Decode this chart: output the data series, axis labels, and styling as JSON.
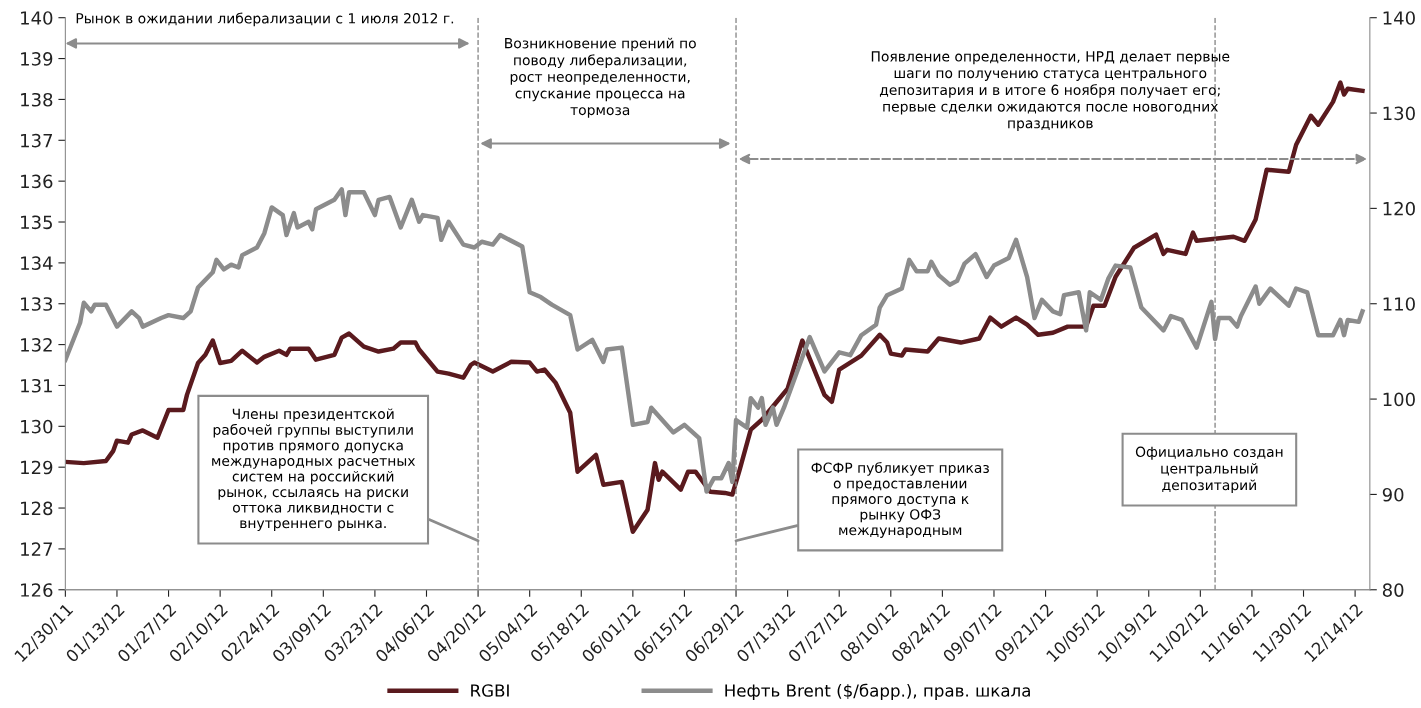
{
  "chart_data": {
    "type": "line",
    "xlim": [
      "2011-12-30",
      "2012-12-18"
    ],
    "xticks": [
      {
        "value": "2011-12-30",
        "label": "12/30/11"
      },
      {
        "value": "2012-01-13",
        "label": "01/13/12"
      },
      {
        "value": "2012-01-27",
        "label": "01/27/12"
      },
      {
        "value": "2012-02-10",
        "label": "02/10/12"
      },
      {
        "value": "2012-02-24",
        "label": "02/24/12"
      },
      {
        "value": "2012-03-09",
        "label": "03/09/12"
      },
      {
        "value": "2012-03-23",
        "label": "03/23/12"
      },
      {
        "value": "2012-04-06",
        "label": "04/06/12"
      },
      {
        "value": "2012-04-20",
        "label": "04/20/12"
      },
      {
        "value": "2012-05-04",
        "label": "05/04/12"
      },
      {
        "value": "2012-05-18",
        "label": "05/18/12"
      },
      {
        "value": "2012-06-01",
        "label": "06/01/12"
      },
      {
        "value": "2012-06-15",
        "label": "06/15/12"
      },
      {
        "value": "2012-06-29",
        "label": "06/29/12"
      },
      {
        "value": "2012-07-13",
        "label": "07/13/12"
      },
      {
        "value": "2012-07-27",
        "label": "07/27/12"
      },
      {
        "value": "2012-08-10",
        "label": "08/10/12"
      },
      {
        "value": "2012-08-24",
        "label": "08/24/12"
      },
      {
        "value": "2012-09-07",
        "label": "09/07/12"
      },
      {
        "value": "2012-09-21",
        "label": "09/21/12"
      },
      {
        "value": "2012-10-05",
        "label": "10/05/12"
      },
      {
        "value": "2012-10-19",
        "label": "10/19/12"
      },
      {
        "value": "2012-11-02",
        "label": "11/02/12"
      },
      {
        "value": "2012-11-16",
        "label": "11/16/12"
      },
      {
        "value": "2012-11-30",
        "label": "11/30/12"
      },
      {
        "value": "2012-12-14",
        "label": "12/14/12"
      }
    ],
    "ylim": [
      126,
      140
    ],
    "yticks": [
      126,
      127,
      128,
      129,
      130,
      131,
      132,
      133,
      134,
      135,
      136,
      137,
      138,
      139,
      140
    ],
    "y2lim": [
      80,
      140
    ],
    "y2ticks": [
      80,
      90,
      100,
      110,
      120,
      130,
      140
    ],
    "grid": false,
    "legend": "bottom",
    "marker": "none",
    "line_style": "solid",
    "series": [
      {
        "name": "RGBI",
        "color": "#5a1a1e",
        "x": [
          "2011-12-30",
          "2012-01-04",
          "2012-01-10",
          "2012-01-12",
          "2012-01-13",
          "2012-01-16",
          "2012-01-17",
          "2012-01-20",
          "2012-01-24",
          "2012-01-27",
          "2012-01-31",
          "2012-02-01",
          "2012-02-04",
          "2012-02-06",
          "2012-02-08",
          "2012-02-10",
          "2012-02-13",
          "2012-02-16",
          "2012-02-20",
          "2012-02-22",
          "2012-02-26",
          "2012-02-28",
          "2012-02-29",
          "2012-03-05",
          "2012-03-07",
          "2012-03-12",
          "2012-03-14",
          "2012-03-16",
          "2012-03-20",
          "2012-03-24",
          "2012-03-28",
          "2012-03-30",
          "2012-04-03",
          "2012-04-04",
          "2012-04-09",
          "2012-04-12",
          "2012-04-16",
          "2012-04-18",
          "2012-04-19",
          "2012-04-24",
          "2012-04-29",
          "2012-05-04",
          "2012-05-06",
          "2012-05-08",
          "2012-05-11",
          "2012-05-15",
          "2012-05-17",
          "2012-05-22",
          "2012-05-24",
          "2012-05-29",
          "2012-06-01",
          "2012-06-05",
          "2012-06-07",
          "2012-06-08",
          "2012-06-09",
          "2012-06-14",
          "2012-06-16",
          "2012-06-18",
          "2012-06-22",
          "2012-06-26",
          "2012-06-28",
          "2012-06-30",
          "2012-07-03",
          "2012-07-06",
          "2012-07-13",
          "2012-07-17",
          "2012-07-23",
          "2012-07-25",
          "2012-07-27",
          "2012-08-02",
          "2012-08-07",
          "2012-08-09",
          "2012-08-10",
          "2012-08-13",
          "2012-08-14",
          "2012-08-20",
          "2012-08-23",
          "2012-08-29",
          "2012-09-03",
          "2012-09-06",
          "2012-09-09",
          "2012-09-13",
          "2012-09-16",
          "2012-09-19",
          "2012-09-23",
          "2012-09-27",
          "2012-10-02",
          "2012-10-04",
          "2012-10-07",
          "2012-10-10",
          "2012-10-15",
          "2012-10-21",
          "2012-10-23",
          "2012-10-24",
          "2012-10-29",
          "2012-10-31",
          "2012-11-01",
          "2012-11-06",
          "2012-11-11",
          "2012-11-14",
          "2012-11-17",
          "2012-11-20",
          "2012-11-26",
          "2012-11-28",
          "2012-12-02",
          "2012-12-04",
          "2012-12-08",
          "2012-12-10",
          "2012-12-11",
          "2012-12-12",
          "2012-12-16"
        ],
        "values": [
          129.13,
          129.1,
          129.15,
          129.4,
          129.65,
          129.6,
          129.8,
          129.9,
          129.72,
          130.4,
          130.4,
          130.77,
          131.55,
          131.75,
          132.1,
          131.55,
          131.6,
          131.85,
          131.56,
          131.7,
          131.85,
          131.75,
          131.9,
          131.9,
          131.63,
          131.75,
          132.17,
          132.27,
          131.95,
          131.83,
          131.9,
          132.05,
          132.05,
          131.88,
          131.34,
          131.29,
          131.19,
          131.5,
          131.56,
          131.34,
          131.58,
          131.56,
          131.34,
          131.39,
          131.07,
          130.33,
          128.89,
          129.3,
          128.57,
          128.64,
          127.42,
          127.96,
          129.1,
          128.69,
          128.89,
          128.45,
          128.89,
          128.89,
          128.4,
          128.37,
          128.33,
          128.94,
          129.92,
          130.16,
          130.92,
          132.1,
          130.77,
          130.6,
          131.39,
          131.73,
          132.24,
          132.05,
          131.78,
          131.73,
          131.88,
          131.83,
          132.15,
          132.05,
          132.15,
          132.66,
          132.44,
          132.66,
          132.49,
          132.24,
          132.29,
          132.44,
          132.44,
          132.95,
          132.95,
          133.66,
          134.37,
          134.69,
          134.22,
          134.32,
          134.22,
          134.74,
          134.54,
          134.59,
          134.64,
          134.54,
          135.06,
          136.28,
          136.23,
          136.89,
          137.6,
          137.38,
          137.94,
          138.41,
          138.12,
          138.26,
          138.21
        ]
      },
      {
        "name": "Нефть Brent ($/барр.), прав. шкала",
        "color": "#8c8c8c",
        "axis": "y2",
        "x": [
          "2011-12-30",
          "2012-01-03",
          "2012-01-04",
          "2012-01-06",
          "2012-01-07",
          "2012-01-10",
          "2012-01-13",
          "2012-01-17",
          "2012-01-19",
          "2012-01-20",
          "2012-01-25",
          "2012-01-27",
          "2012-01-31",
          "2012-02-02",
          "2012-02-04",
          "2012-02-08",
          "2012-02-09",
          "2012-02-11",
          "2012-02-13",
          "2012-02-15",
          "2012-02-16",
          "2012-02-20",
          "2012-02-22",
          "2012-02-24",
          "2012-02-27",
          "2012-02-28",
          "2012-03-01",
          "2012-03-02",
          "2012-03-05",
          "2012-03-06",
          "2012-03-07",
          "2012-03-12",
          "2012-03-14",
          "2012-03-15",
          "2012-03-16",
          "2012-03-20",
          "2012-03-23",
          "2012-03-24",
          "2012-03-27",
          "2012-03-30",
          "2012-04-02",
          "2012-04-04",
          "2012-04-05",
          "2012-04-09",
          "2012-04-10",
          "2012-04-12",
          "2012-04-16",
          "2012-04-19",
          "2012-04-21",
          "2012-04-24",
          "2012-04-26",
          "2012-05-02",
          "2012-05-04",
          "2012-05-07",
          "2012-05-10",
          "2012-05-15",
          "2012-05-17",
          "2012-05-21",
          "2012-05-24",
          "2012-05-25",
          "2012-05-29",
          "2012-06-01",
          "2012-06-05",
          "2012-06-06",
          "2012-06-12",
          "2012-06-15",
          "2012-06-19",
          "2012-06-21",
          "2012-06-23",
          "2012-06-25",
          "2012-06-27",
          "2012-06-28",
          "2012-06-29",
          "2012-07-02",
          "2012-07-03",
          "2012-07-05",
          "2012-07-06",
          "2012-07-07",
          "2012-07-09",
          "2012-07-10",
          "2012-07-12",
          "2012-07-19",
          "2012-07-23",
          "2012-07-27",
          "2012-07-30",
          "2012-08-02",
          "2012-08-06",
          "2012-08-07",
          "2012-08-09",
          "2012-08-13",
          "2012-08-15",
          "2012-08-17",
          "2012-08-20",
          "2012-08-21",
          "2012-08-23",
          "2012-08-26",
          "2012-08-28",
          "2012-08-30",
          "2012-09-02",
          "2012-09-05",
          "2012-09-07",
          "2012-09-11",
          "2012-09-13",
          "2012-09-16",
          "2012-09-18",
          "2012-09-20",
          "2012-09-23",
          "2012-09-25",
          "2012-09-26",
          "2012-09-30",
          "2012-10-02",
          "2012-10-03",
          "2012-10-06",
          "2012-10-08",
          "2012-10-10",
          "2012-10-14",
          "2012-10-17",
          "2012-10-23",
          "2012-10-25",
          "2012-10-28",
          "2012-11-01",
          "2012-11-05",
          "2012-11-06",
          "2012-11-07",
          "2012-11-10",
          "2012-11-12",
          "2012-11-13",
          "2012-11-17",
          "2012-11-18",
          "2012-11-21",
          "2012-11-26",
          "2012-11-28",
          "2012-12-01",
          "2012-12-04",
          "2012-12-08",
          "2012-12-10",
          "2012-12-11",
          "2012-12-12",
          "2012-12-15",
          "2012-12-16"
        ],
        "values": [
          104.1,
          108.0,
          110.1,
          109.2,
          109.9,
          109.9,
          107.6,
          109.2,
          108.5,
          107.6,
          108.5,
          108.8,
          108.5,
          109.2,
          111.7,
          113.3,
          114.6,
          113.6,
          114.1,
          113.8,
          115.1,
          115.9,
          117.4,
          120.1,
          119.3,
          117.2,
          119.5,
          118.0,
          118.6,
          117.8,
          119.9,
          120.9,
          122.0,
          119.3,
          121.7,
          121.7,
          119.3,
          120.9,
          121.2,
          118.0,
          120.9,
          118.6,
          119.3,
          119.0,
          116.7,
          118.6,
          116.2,
          115.9,
          116.5,
          116.2,
          117.2,
          116.0,
          111.2,
          110.7,
          109.9,
          108.8,
          105.2,
          106.2,
          103.9,
          105.2,
          105.4,
          97.3,
          97.6,
          99.1,
          96.5,
          97.3,
          95.9,
          90.3,
          91.7,
          91.7,
          93.3,
          91.3,
          97.8,
          97.0,
          100.1,
          99.1,
          100.1,
          97.3,
          99.1,
          97.3,
          99.1,
          106.5,
          102.9,
          104.9,
          104.6,
          106.7,
          107.8,
          109.6,
          110.9,
          111.6,
          114.6,
          113.4,
          113.4,
          114.4,
          113.0,
          112.0,
          112.4,
          114.2,
          115.2,
          112.8,
          114.0,
          114.8,
          116.7,
          112.8,
          108.5,
          110.4,
          109.2,
          108.9,
          110.9,
          111.2,
          107.2,
          111.2,
          110.4,
          112.6,
          114.0,
          113.8,
          109.6,
          107.2,
          108.7,
          108.3,
          105.4,
          110.2,
          106.3,
          108.5,
          108.5,
          107.6,
          108.7,
          111.8,
          110.0,
          111.6,
          109.8,
          111.6,
          111.2,
          106.7,
          106.7,
          108.3,
          106.7,
          108.3,
          108.1,
          109.2
        ]
      }
    ],
    "ref_lines": [
      {
        "axis": "x",
        "value": "2012-04-20",
        "color": "#8c8c8c",
        "line_style": "dashed"
      },
      {
        "axis": "x",
        "value": "2012-06-29",
        "color": "#8c8c8c",
        "line_style": "dashed"
      },
      {
        "axis": "x",
        "value": "2012-11-06",
        "color": "#8c8c8c",
        "line_style": "dashed"
      }
    ],
    "annotations": [
      "Рынок в ожидании либерализации с 1 июля 2012 г.",
      "Возникновение прений по\nповоду либерализации,\nрост неопределенности,\nспускание процесса на\nтормоза",
      "Появление определенности, НРД делает первые\nшаги по получению статуса центрального\nдепозитария и в итоге 6 ноября получает его;\nпервые сделки ожидаются после новогодних\nпраздников",
      {
        "text": "Члены президентской\nрабочей группы выступили\nпротив прямого допуска\nмеждународных расчетных\nсистем на российский\nрынок, ссылаясь на риски\nоттока ликвидности с\nвнутреннего рынка.",
        "x": "2012-04-20",
        "y": 127.2
      },
      {
        "text": "ФСФР публикует приказ\nо предоставлении\nпрямого доступа к\nрынку ОФЗ\nмеждународным",
        "x": "2012-06-29",
        "y": 127.2
      },
      "Официально создан\nцентральный\nдепозитарий"
    ]
  }
}
